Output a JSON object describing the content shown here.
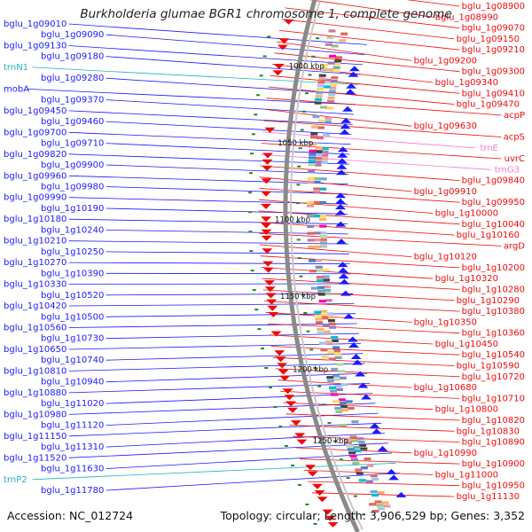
{
  "title": "Burkholderia glumae BGR1 chromosome 1, complete genome",
  "accession": "Accession: NC_012724",
  "summary": "Topology: circular; Length: 3,906,529 bp; Genes: 3,352",
  "colors": {
    "background": "#ffffff",
    "backbone": "#8a8a8a",
    "forward_strand": "#1a1aff",
    "reverse_strand": "#ee0a0a",
    "trna": "#22b2c0",
    "pseudo_trna": "#f27ccc",
    "tick": "#1f8a1f"
  },
  "scale_ticks": [
    {
      "label": "1000 kbp"
    },
    {
      "label": "1050 kbp"
    },
    {
      "label": "1100 kbp"
    },
    {
      "label": "1150 kbp"
    },
    {
      "label": "1200 kbp"
    },
    {
      "label": "1250 kbp"
    }
  ],
  "left_labels": [
    {
      "text": "bglu_1g09010",
      "kind": "forward"
    },
    {
      "text": "bglu_1g09090",
      "kind": "forward"
    },
    {
      "text": "bglu_1g09130",
      "kind": "forward"
    },
    {
      "text": "bglu_1g09180",
      "kind": "forward"
    },
    {
      "text": "trnN1",
      "kind": "trna"
    },
    {
      "text": "bglu_1g09280",
      "kind": "forward"
    },
    {
      "text": "mobA",
      "kind": "forward"
    },
    {
      "text": "bglu_1g09370",
      "kind": "forward"
    },
    {
      "text": "bglu_1g09450",
      "kind": "forward"
    },
    {
      "text": "bglu_1g09460",
      "kind": "forward"
    },
    {
      "text": "bglu_1g09700",
      "kind": "forward"
    },
    {
      "text": "bglu_1g09710",
      "kind": "forward"
    },
    {
      "text": "bglu_1g09820",
      "kind": "forward"
    },
    {
      "text": "bglu_1g09900",
      "kind": "forward"
    },
    {
      "text": "bglu_1g09960",
      "kind": "forward"
    },
    {
      "text": "bglu_1g09980",
      "kind": "forward"
    },
    {
      "text": "bglu_1g09990",
      "kind": "forward"
    },
    {
      "text": "bglu_1g10190",
      "kind": "forward"
    },
    {
      "text": "bglu_1g10180",
      "kind": "forward"
    },
    {
      "text": "bglu_1g10240",
      "kind": "forward"
    },
    {
      "text": "bglu_1g10210",
      "kind": "forward"
    },
    {
      "text": "bglu_1g10250",
      "kind": "forward"
    },
    {
      "text": "bglu_1g10270",
      "kind": "forward"
    },
    {
      "text": "bglu_1g10390",
      "kind": "forward"
    },
    {
      "text": "bglu_1g10330",
      "kind": "forward"
    },
    {
      "text": "bglu_1g10520",
      "kind": "forward"
    },
    {
      "text": "bglu_1g10420",
      "kind": "forward"
    },
    {
      "text": "bglu_1g10500",
      "kind": "forward"
    },
    {
      "text": "bglu_1g10560",
      "kind": "forward"
    },
    {
      "text": "bglu_1g10730",
      "kind": "forward"
    },
    {
      "text": "bglu_1g10650",
      "kind": "forward"
    },
    {
      "text": "bglu_1g10740",
      "kind": "forward"
    },
    {
      "text": "bglu_1g10810",
      "kind": "forward"
    },
    {
      "text": "bglu_1g10940",
      "kind": "forward"
    },
    {
      "text": "bglu_1g10880",
      "kind": "forward"
    },
    {
      "text": "bglu_1g11020",
      "kind": "forward"
    },
    {
      "text": "bglu_1g10980",
      "kind": "forward"
    },
    {
      "text": "bglu_1g11120",
      "kind": "forward"
    },
    {
      "text": "bglu_1g11150",
      "kind": "forward"
    },
    {
      "text": "bglu_1g11310",
      "kind": "forward"
    },
    {
      "text": "bglu_1g11520",
      "kind": "forward"
    },
    {
      "text": "bglu_1g11630",
      "kind": "forward"
    },
    {
      "text": "trnP2",
      "kind": "trna"
    },
    {
      "text": "bglu_1g11780",
      "kind": "forward"
    }
  ],
  "right_labels": [
    {
      "text": "bglu_1g08900",
      "kind": "reverse"
    },
    {
      "text": "bglu_1g08990",
      "kind": "reverse"
    },
    {
      "text": "bglu_1g09070",
      "kind": "reverse"
    },
    {
      "text": "bglu_1g09150",
      "kind": "reverse"
    },
    {
      "text": "bglu_1g09210",
      "kind": "reverse"
    },
    {
      "text": "bglu_1g09200",
      "kind": "reverse"
    },
    {
      "text": "bglu_1g09300",
      "kind": "reverse"
    },
    {
      "text": "bglu_1g09340",
      "kind": "reverse"
    },
    {
      "text": "bglu_1g09410",
      "kind": "reverse"
    },
    {
      "text": "bglu_1g09470",
      "kind": "reverse"
    },
    {
      "text": "acpP",
      "kind": "reverse"
    },
    {
      "text": "bglu_1g09630",
      "kind": "reverse"
    },
    {
      "text": "acpS",
      "kind": "reverse"
    },
    {
      "text": "trnE",
      "kind": "pseudo"
    },
    {
      "text": "uvrC",
      "kind": "reverse"
    },
    {
      "text": "trnG3",
      "kind": "pseudo"
    },
    {
      "text": "bglu_1g09840",
      "kind": "reverse"
    },
    {
      "text": "bglu_1g09910",
      "kind": "reverse"
    },
    {
      "text": "bglu_1g09950",
      "kind": "reverse"
    },
    {
      "text": "bglu_1g10000",
      "kind": "reverse"
    },
    {
      "text": "bglu_1g10040",
      "kind": "reverse"
    },
    {
      "text": "bglu_1g10160",
      "kind": "reverse"
    },
    {
      "text": "argD",
      "kind": "reverse"
    },
    {
      "text": "bglu_1g10120",
      "kind": "reverse"
    },
    {
      "text": "bglu_1g10200",
      "kind": "reverse"
    },
    {
      "text": "bglu_1g10320",
      "kind": "reverse"
    },
    {
      "text": "bglu_1g10280",
      "kind": "reverse"
    },
    {
      "text": "bglu_1g10290",
      "kind": "reverse"
    },
    {
      "text": "bglu_1g10380",
      "kind": "reverse"
    },
    {
      "text": "bglu_1g10350",
      "kind": "reverse"
    },
    {
      "text": "bglu_1g10360",
      "kind": "reverse"
    },
    {
      "text": "bglu_1g10450",
      "kind": "reverse"
    },
    {
      "text": "bglu_1g10540",
      "kind": "reverse"
    },
    {
      "text": "bglu_1g10590",
      "kind": "reverse"
    },
    {
      "text": "bglu_1g10720",
      "kind": "reverse"
    },
    {
      "text": "bglu_1g10680",
      "kind": "reverse"
    },
    {
      "text": "bglu_1g10710",
      "kind": "reverse"
    },
    {
      "text": "bglu_1g10800",
      "kind": "reverse"
    },
    {
      "text": "bglu_1g10820",
      "kind": "reverse"
    },
    {
      "text": "bglu_1g10830",
      "kind": "reverse"
    },
    {
      "text": "bglu_1g10890",
      "kind": "reverse"
    },
    {
      "text": "bglu_1g10990",
      "kind": "reverse"
    },
    {
      "text": "bglu_1g10900",
      "kind": "reverse"
    },
    {
      "text": "bglu_1g11000",
      "kind": "reverse"
    },
    {
      "text": "bglu_1g10950",
      "kind": "reverse"
    },
    {
      "text": "bglu_1g11130",
      "kind": "reverse"
    }
  ]
}
